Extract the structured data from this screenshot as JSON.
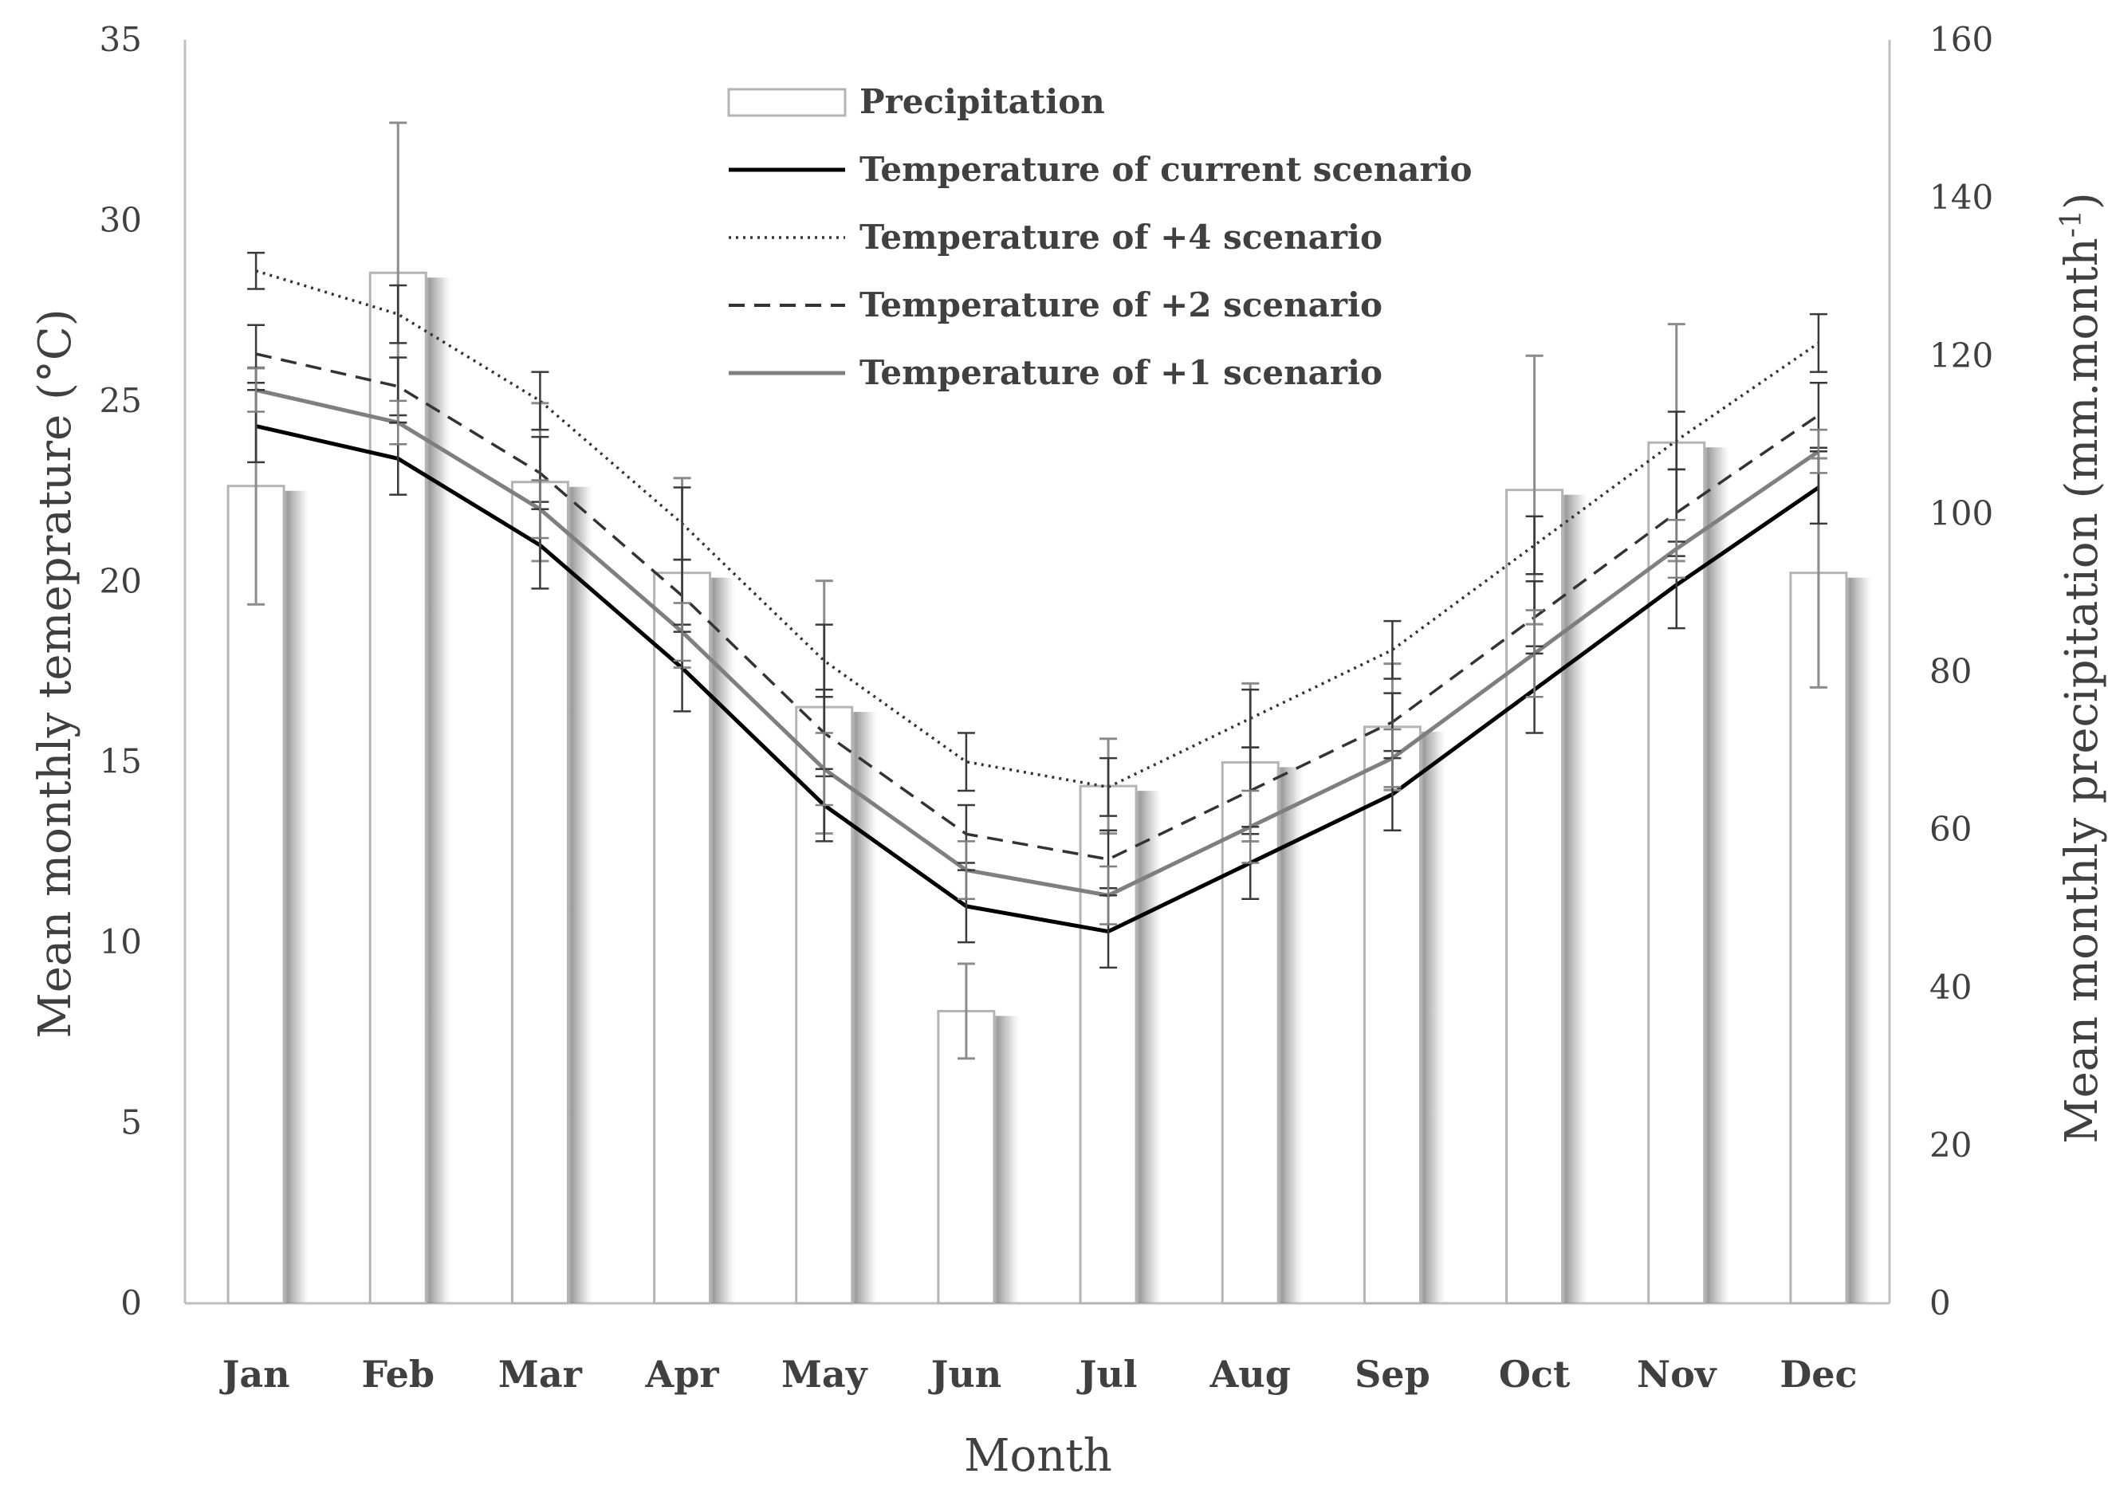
{
  "chart_data": {
    "type": "bar+line",
    "categories": [
      "Jan",
      "Feb",
      "Mar",
      "Apr",
      "May",
      "Jun",
      "Jul",
      "Aug",
      "Sep",
      "Oct",
      "Nov",
      "Dec"
    ],
    "xlabel": "Month",
    "ylabel_left": "Mean monthly temeprature (°C)",
    "ylabel_right_main": "Mean monthly precipitation (mm.month",
    "ylabel_right_sup": "-1",
    "ylabel_right_close": ")",
    "ylim_left": [
      0,
      35
    ],
    "yticks_left": [
      0,
      5,
      10,
      15,
      20,
      25,
      30,
      35
    ],
    "ylim_right": [
      0,
      160
    ],
    "yticks_right": [
      0,
      20,
      40,
      60,
      80,
      100,
      120,
      140,
      160
    ],
    "precipitation": {
      "name": "Precipitation",
      "axis": "right",
      "values": [
        103.5,
        130.5,
        104,
        92.5,
        75.5,
        37,
        65.5,
        68.5,
        73,
        103,
        109,
        92.5
      ],
      "error": [
        15,
        19,
        10,
        12,
        16,
        6,
        6,
        10,
        8,
        17,
        15,
        14.5
      ]
    },
    "series": [
      {
        "name": "Temperature of current scenario",
        "style": "solid",
        "color": "#000000",
        "values": [
          24.3,
          23.4,
          21.0,
          17.6,
          13.8,
          11.0,
          10.3,
          12.2,
          14.1,
          17.0,
          19.9,
          22.6
        ],
        "error": [
          1.0,
          1.0,
          1.2,
          1.2,
          1.0,
          1.0,
          1.0,
          1.0,
          1.0,
          1.2,
          1.2,
          1.0
        ]
      },
      {
        "name": "Temperature of +4 scenario",
        "style": "dotted",
        "color": "#333333",
        "values": [
          28.6,
          27.4,
          25.0,
          21.6,
          17.8,
          15.0,
          14.3,
          16.2,
          18.1,
          21.0,
          23.9,
          26.6
        ],
        "error": [
          0.5,
          0.8,
          0.8,
          1.0,
          1.0,
          0.8,
          0.8,
          0.8,
          0.8,
          0.8,
          0.8,
          0.8
        ]
      },
      {
        "name": "Temperature of +2 scenario",
        "style": "dashed",
        "color": "#333333",
        "values": [
          26.3,
          25.4,
          23.0,
          19.6,
          15.8,
          13.0,
          12.3,
          14.2,
          16.1,
          19.0,
          21.9,
          24.6
        ],
        "error": [
          0.8,
          0.8,
          1.0,
          1.0,
          1.2,
          0.8,
          0.8,
          1.2,
          0.8,
          1.0,
          1.2,
          0.9
        ]
      },
      {
        "name": "Temperature of +1 scenario",
        "style": "solid",
        "color": "#7f7f7f",
        "values": [
          25.3,
          24.4,
          22.0,
          18.6,
          14.8,
          12.0,
          11.3,
          13.2,
          15.1,
          18.0,
          20.9,
          23.6
        ],
        "error": [
          0.6,
          0.6,
          0.8,
          0.8,
          1.0,
          0.8,
          0.8,
          1.0,
          0.8,
          1.2,
          0.8,
          0.6
        ]
      }
    ]
  }
}
